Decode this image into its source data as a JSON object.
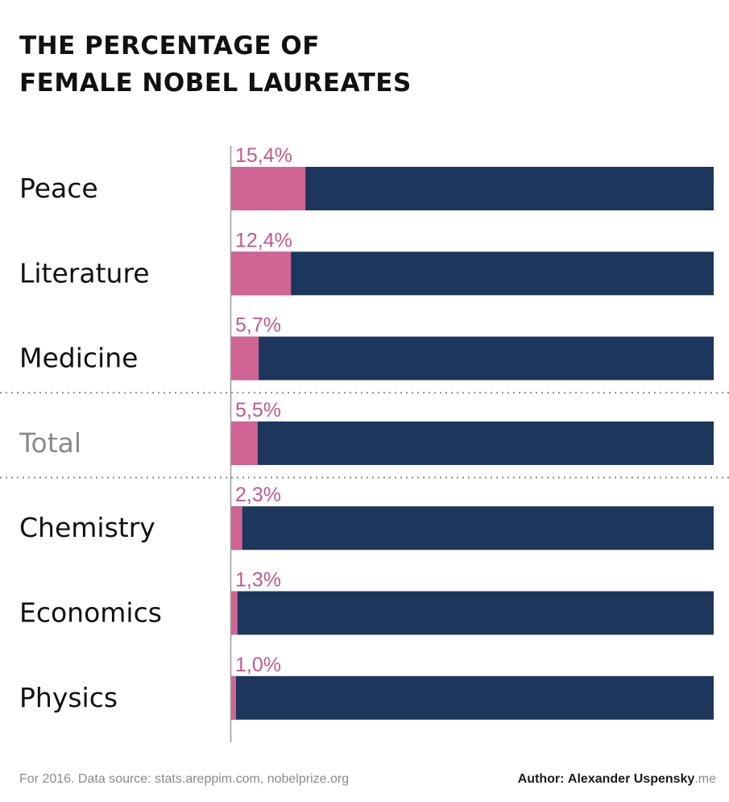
{
  "header": {
    "title_line1": "THE PERCENTAGE OF",
    "title_line2": "FEMALE NOBEL LAUREATES"
  },
  "chart_data": {
    "type": "bar",
    "orientation": "horizontal",
    "stacked": true,
    "categories": [
      "Peace",
      "Literature",
      "Medicine",
      "Total",
      "Chemistry",
      "Economics",
      "Physics"
    ],
    "values": [
      15.4,
      12.4,
      5.7,
      5.5,
      2.3,
      1.3,
      1.0
    ],
    "value_labels": [
      "15,4%",
      "12,4%",
      "5,7%",
      "5,5%",
      "2,3%",
      "1,3%",
      "1,0%"
    ],
    "xlim": [
      0,
      100
    ],
    "highlight_category": "Total",
    "separators_around": "Total",
    "colors": {
      "female": "#d06494",
      "male": "#1c365c",
      "value_label": "#c05a8c",
      "category_label": "#111111",
      "highlight_label": "#8a8a8a"
    },
    "grid": false,
    "legend": "none"
  },
  "footer": {
    "source": "For 2016. Data source: stats.areppim.com, nobelprize.org",
    "author_label": "Author:",
    "author_name": "Alexander Uspensky",
    "author_suffix": ".me"
  }
}
